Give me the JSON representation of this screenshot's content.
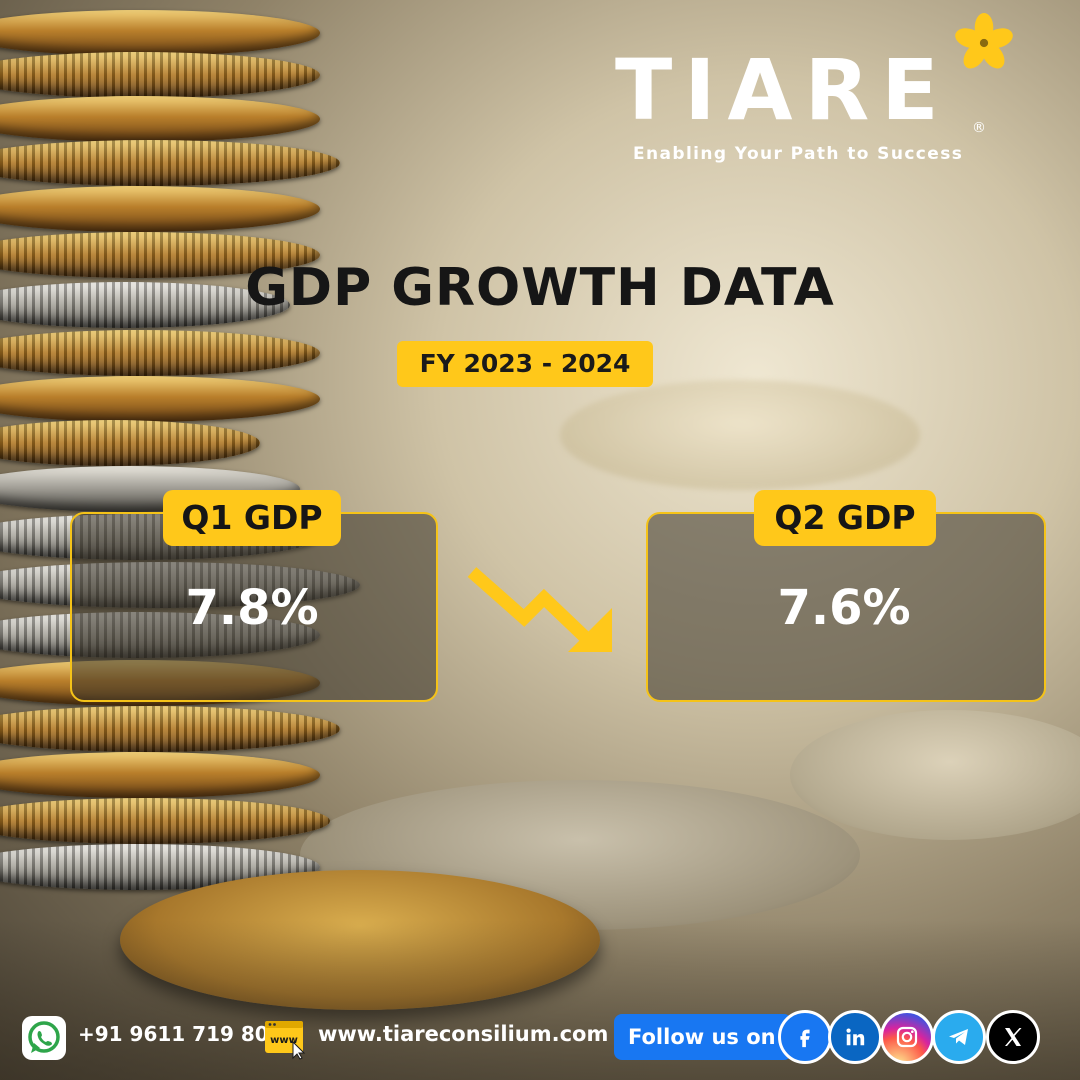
{
  "brand": {
    "name": "TIARE",
    "registered_mark": "®",
    "tagline": "Enabling Your Path to Success",
    "accent_color": "#ffc81a"
  },
  "headline": {
    "title": "GDP GROWTH DATA",
    "fiscal_year": "FY 2023 - 2024"
  },
  "quarters": [
    {
      "label": "Q1 GDP",
      "value": "7.8%"
    },
    {
      "label": "Q2 GDP",
      "value": "7.6%"
    }
  ],
  "trend": {
    "direction": "down",
    "icon": "trend-down-arrow-icon"
  },
  "footer": {
    "phone": "+91 9611 719 808",
    "phone_icon": "whatsapp-icon",
    "website": "www.tiareconsilium.com",
    "website_icon": "www-icon",
    "follow_label": "Follow us on",
    "socials": [
      "facebook-icon",
      "linkedin-icon",
      "instagram-icon",
      "telegram-icon",
      "x-icon"
    ]
  }
}
